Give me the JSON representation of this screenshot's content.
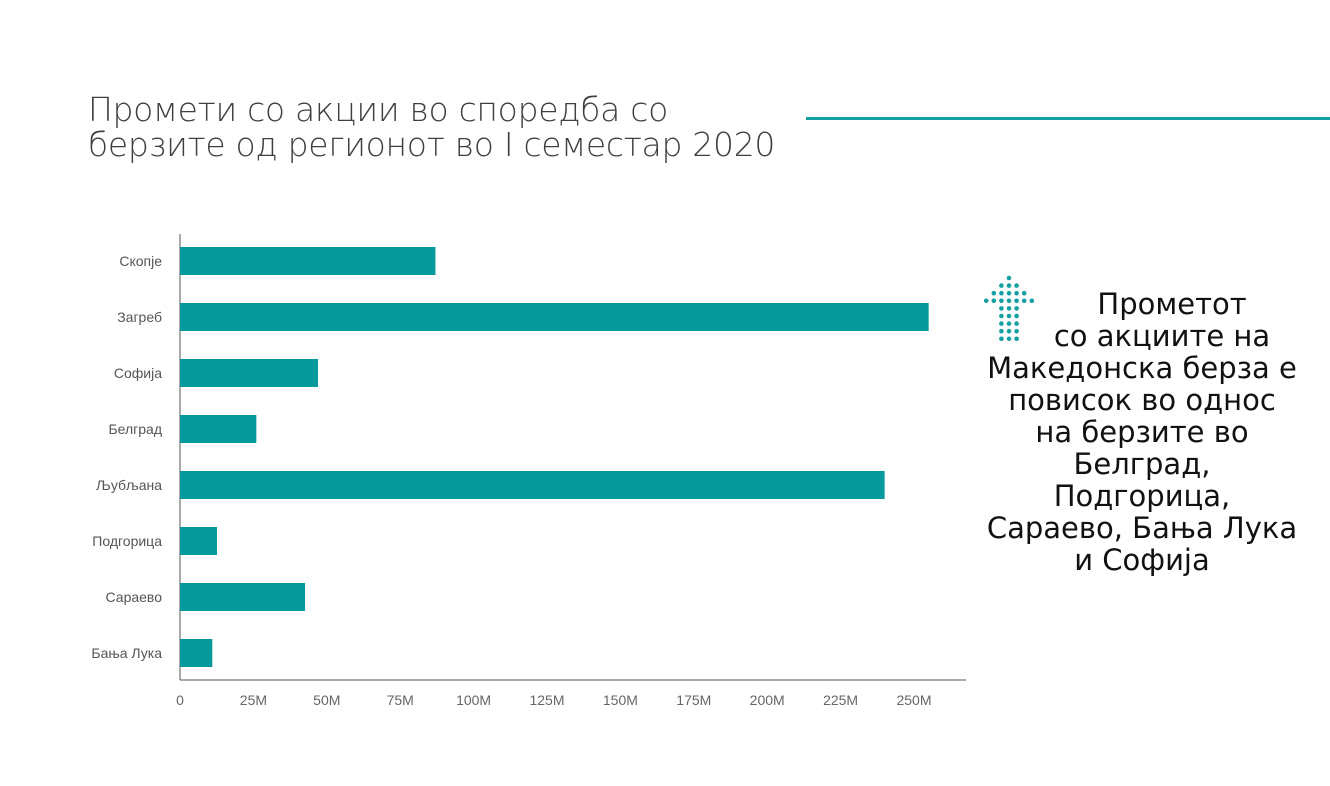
{
  "title_lines": [
    "Промети со акции во споредба со",
    "берзите од регионот во I семестар 2020"
  ],
  "note": {
    "lines": [
      "Прометот",
      "со акциите на",
      "Македонска берза е",
      "повисок во однос",
      "на берзите во",
      "Белград,",
      "Подгорица,",
      "Сараево, Бања Лука",
      "и Софија"
    ],
    "icon": "dotted-up-arrow-icon"
  },
  "colors": {
    "bar": "#079a9c",
    "accent": "#149fa3"
  },
  "chart_data": {
    "type": "bar",
    "orientation": "horizontal",
    "categories": [
      "Скопје",
      "Загреб",
      "Софија",
      "Белград",
      "Љубљана",
      "Подгорица",
      "Сараево",
      "Бања Лука"
    ],
    "values": [
      87,
      255,
      47,
      26,
      240,
      12.6,
      42.6,
      11
    ],
    "unit": "M",
    "xlim": [
      0,
      268
    ],
    "xticks": [
      0,
      25,
      50,
      75,
      100,
      125,
      150,
      175,
      200,
      225,
      250
    ],
    "xtick_labels": [
      "0",
      "25M",
      "50M",
      "75M",
      "100M",
      "125M",
      "150M",
      "175M",
      "200M",
      "225M",
      "250M"
    ],
    "grid": false,
    "legend": "none"
  }
}
